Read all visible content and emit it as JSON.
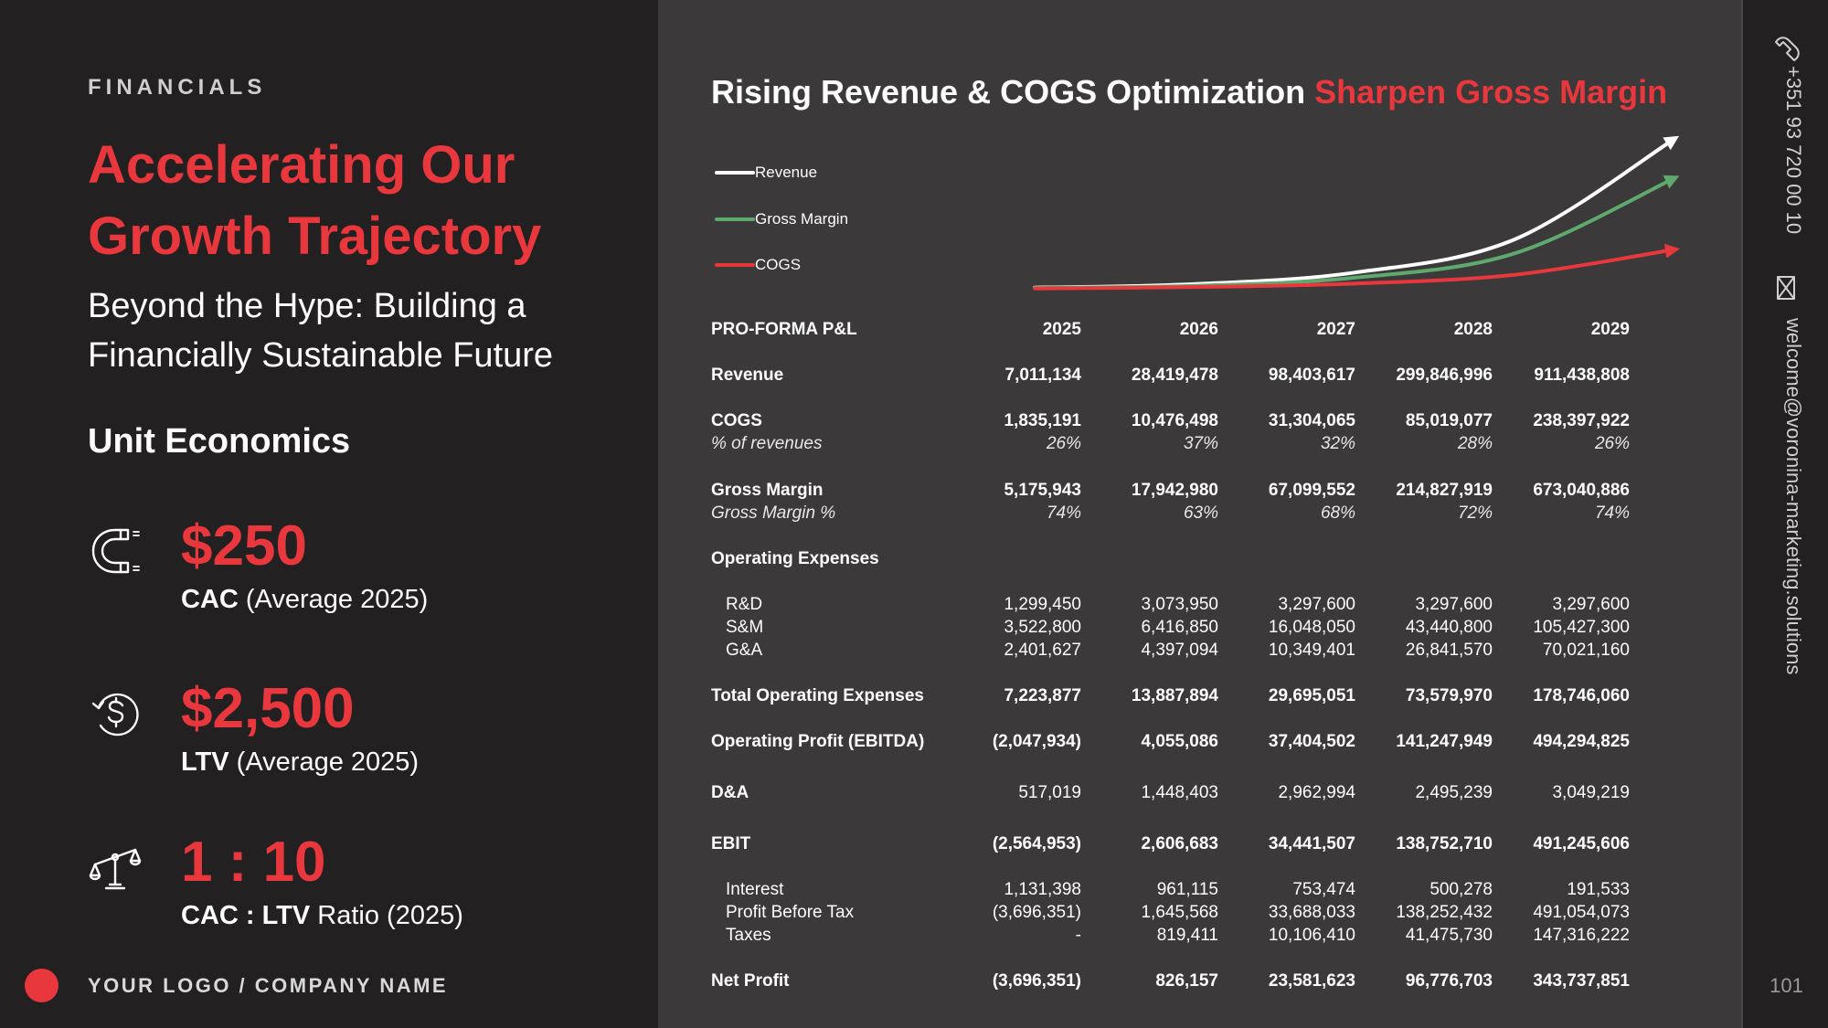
{
  "left": {
    "kicker": "FINANCIALS",
    "headline_line1": "Accelerating Our",
    "headline_line2": "Growth Trajectory",
    "subhead_line1": "Beyond the Hype: Building a",
    "subhead_line2": "Financially Sustainable Future",
    "unit_economics_title": "Unit Economics",
    "metrics": [
      {
        "icon": "magnet-icon",
        "value": "$250",
        "caption_bold": "CAC",
        "caption_rest": " (Average 2025)"
      },
      {
        "icon": "dollar-cycle-icon",
        "value": "$2,500",
        "caption_bold": "LTV",
        "caption_rest": " (Average 2025)"
      },
      {
        "icon": "balance-scale-icon",
        "value": "1 : 10",
        "caption_bold": "CAC : LTV",
        "caption_rest": " Ratio (2025)"
      }
    ],
    "logo_text": "YOUR LOGO / COMPANY NAME"
  },
  "chart": {
    "title_main": "Rising Revenue & COGS Optimization ",
    "title_accent": "Sharpen Gross Margin",
    "legend": [
      {
        "label": "Revenue",
        "color": "#ffffff"
      },
      {
        "label": "Gross Margin",
        "color": "#5fa96e"
      },
      {
        "label": "COGS",
        "color": "#e8383d"
      }
    ]
  },
  "chart_data": {
    "type": "line",
    "title": "Rising Revenue & COGS Optimization Sharpen Gross Margin",
    "x": [
      "2025",
      "2026",
      "2027",
      "2028",
      "2029"
    ],
    "series": [
      {
        "name": "Revenue",
        "values": [
          7011134,
          28419478,
          98403617,
          299846996,
          911438808
        ]
      },
      {
        "name": "Gross Margin",
        "values": [
          5175943,
          17942980,
          67099552,
          214827919,
          673040886
        ]
      },
      {
        "name": "COGS",
        "values": [
          1835191,
          10476498,
          31304065,
          85019077,
          238397922
        ]
      }
    ],
    "legend_position": "top-left",
    "grid": false
  },
  "table": {
    "header": {
      "label": "PRO-FORMA P&L",
      "years": [
        "2025",
        "2026",
        "2027",
        "2028",
        "2029"
      ]
    },
    "rows": [
      {
        "label": "Revenue",
        "style": "bold",
        "values": [
          "7,011,134",
          "28,419,478",
          "98,403,617",
          "299,846,996",
          "911,438,808"
        ]
      },
      {
        "label": "COGS",
        "style": "bold",
        "values": [
          "1,835,191",
          "10,476,498",
          "31,304,065",
          "85,019,077",
          "238,397,922"
        ]
      },
      {
        "label": "% of revenues",
        "style": "italic",
        "values": [
          "26%",
          "37%",
          "32%",
          "28%",
          "26%"
        ]
      },
      {
        "label": "Gross Margin",
        "style": "bold",
        "values": [
          "5,175,943",
          "17,942,980",
          "67,099,552",
          "214,827,919",
          "673,040,886"
        ]
      },
      {
        "label": "Gross Margin %",
        "style": "italic",
        "values": [
          "74%",
          "63%",
          "68%",
          "72%",
          "74%"
        ]
      },
      {
        "label": "Operating Expenses",
        "style": "bold",
        "values": [
          "",
          "",
          "",
          "",
          ""
        ]
      },
      {
        "label": "R&D",
        "style": "indent",
        "values": [
          "1,299,450",
          "3,073,950",
          "3,297,600",
          "3,297,600",
          "3,297,600"
        ]
      },
      {
        "label": "S&M",
        "style": "indent",
        "values": [
          "3,522,800",
          "6,416,850",
          "16,048,050",
          "43,440,800",
          "105,427,300"
        ]
      },
      {
        "label": "G&A",
        "style": "indent",
        "values": [
          "2,401,627",
          "4,397,094",
          "10,349,401",
          "26,841,570",
          "70,021,160"
        ]
      },
      {
        "label": "Total Operating Expenses",
        "style": "bold",
        "values": [
          "7,223,877",
          "13,887,894",
          "29,695,051",
          "73,579,970",
          "178,746,060"
        ]
      },
      {
        "label": "Operating Profit (EBITDA)",
        "style": "bold",
        "values": [
          "(2,047,934)",
          "4,055,086",
          "37,404,502",
          "141,247,949",
          "494,294,825"
        ]
      },
      {
        "label": "D&A",
        "style": "bold-label",
        "values": [
          "517,019",
          "1,448,403",
          "2,962,994",
          "2,495,239",
          "3,049,219"
        ]
      },
      {
        "label": "EBIT",
        "style": "bold",
        "values": [
          "(2,564,953)",
          "2,606,683",
          "34,441,507",
          "138,752,710",
          "491,245,606"
        ]
      },
      {
        "label": "Interest",
        "style": "indent",
        "values": [
          "1,131,398",
          "961,115",
          "753,474",
          "500,278",
          "191,533"
        ]
      },
      {
        "label": "Profit Before Tax",
        "style": "indent",
        "values": [
          "(3,696,351)",
          "1,645,568",
          "33,688,033",
          "138,252,432",
          "491,054,073"
        ]
      },
      {
        "label": "Taxes",
        "style": "indent",
        "values": [
          "-",
          "819,411",
          "10,106,410",
          "41,475,730",
          "147,316,222"
        ]
      },
      {
        "label": "Net Profit",
        "style": "bold",
        "values": [
          "(3,696,351)",
          "826,157",
          "23,581,623",
          "96,776,703",
          "343,737,851"
        ]
      }
    ]
  },
  "sidebar": {
    "phone": "+351 93 720 00 10",
    "email": "welcome@voronina-marketing.solutions",
    "page_number": "101"
  }
}
